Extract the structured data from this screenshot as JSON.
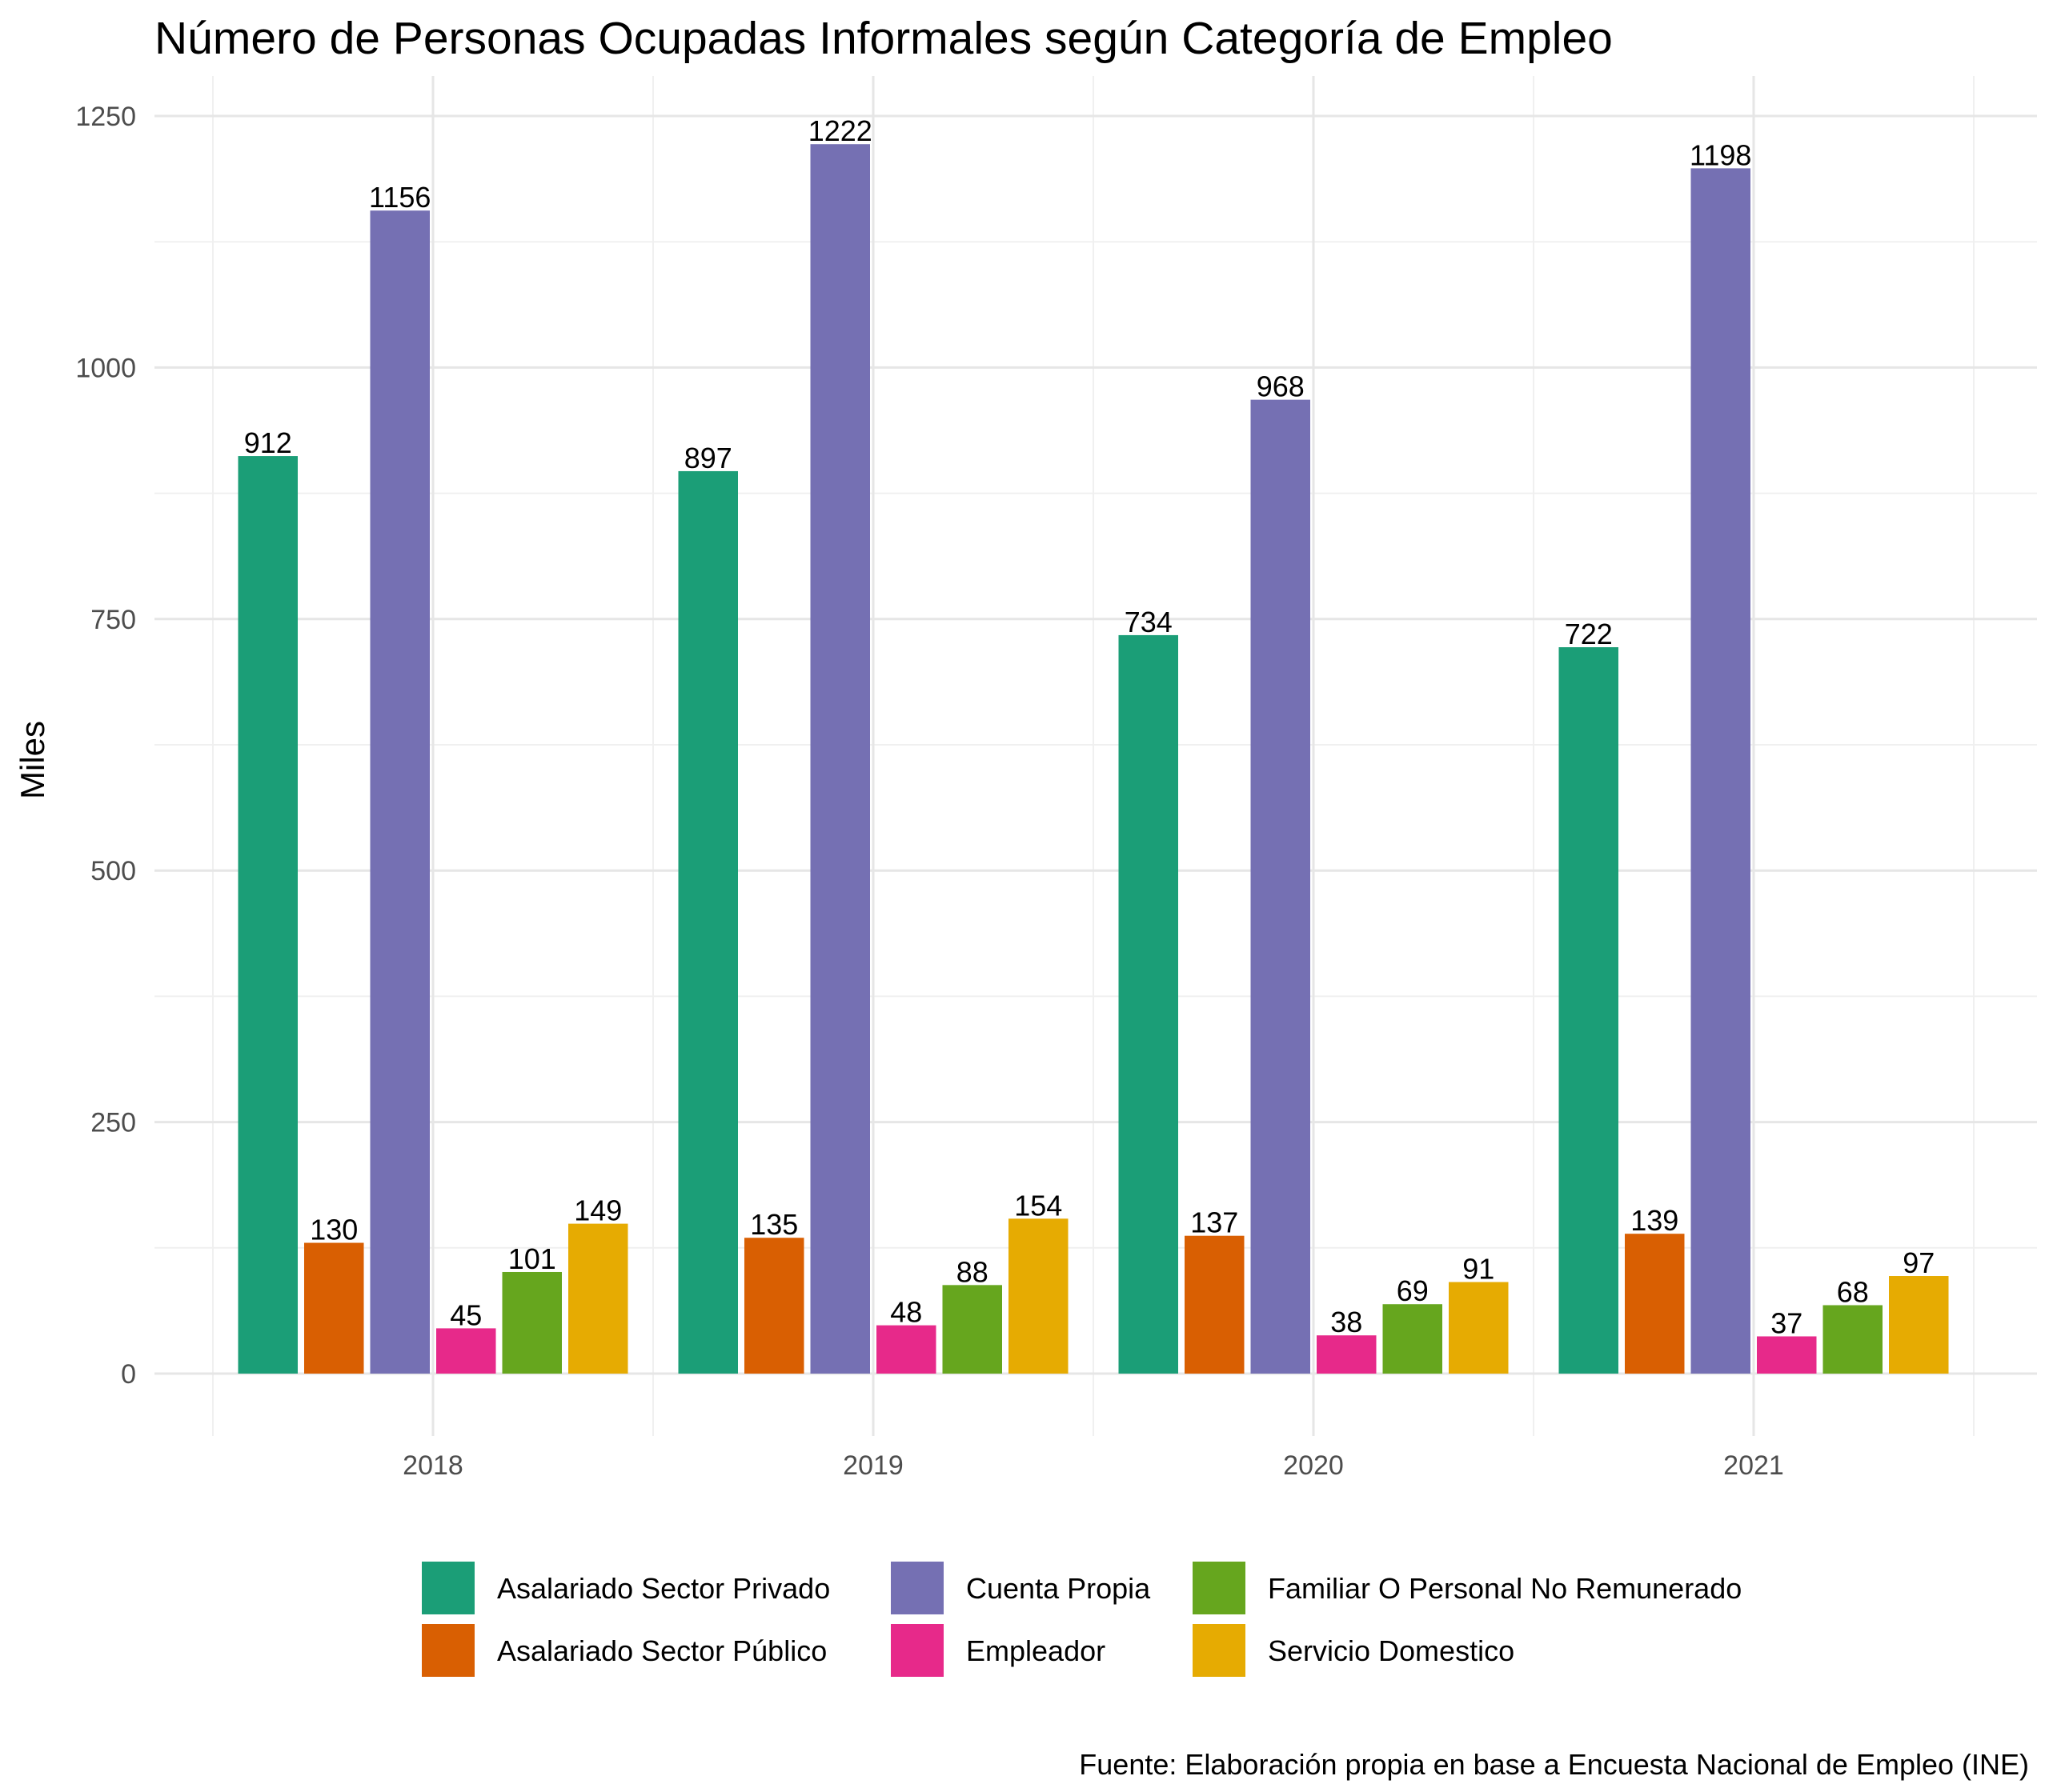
{
  "chart_data": {
    "type": "bar",
    "title": "Número de Personas Ocupadas Informales según Categoría de Empleo",
    "ylabel": "Miles",
    "xlabel": "",
    "categories": [
      "2018",
      "2019",
      "2020",
      "2021"
    ],
    "ylim": [
      0,
      1250
    ],
    "yticks": [
      0,
      250,
      500,
      750,
      1000,
      1250
    ],
    "grid": true,
    "legend_position": "bottom",
    "series": [
      {
        "name": "Asalariado Sector Privado",
        "color": "#1b9e77",
        "values": [
          912,
          897,
          734,
          722
        ]
      },
      {
        "name": "Asalariado Sector Público",
        "color": "#d95f02",
        "values": [
          130,
          135,
          137,
          139
        ]
      },
      {
        "name": "Cuenta Propia",
        "color": "#7570b3",
        "values": [
          1156,
          1222,
          968,
          1198
        ]
      },
      {
        "name": "Empleador",
        "color": "#e7298a",
        "values": [
          45,
          48,
          38,
          37
        ]
      },
      {
        "name": "Familiar O Personal No Remunerado",
        "color": "#66a61e",
        "values": [
          101,
          88,
          69,
          68
        ]
      },
      {
        "name": "Servicio Domestico",
        "color": "#e6ab02",
        "values": [
          149,
          154,
          91,
          97
        ]
      }
    ],
    "caption": "Fuente: Elaboración propia en base a Encuesta Nacional de Empleo (INE)"
  }
}
